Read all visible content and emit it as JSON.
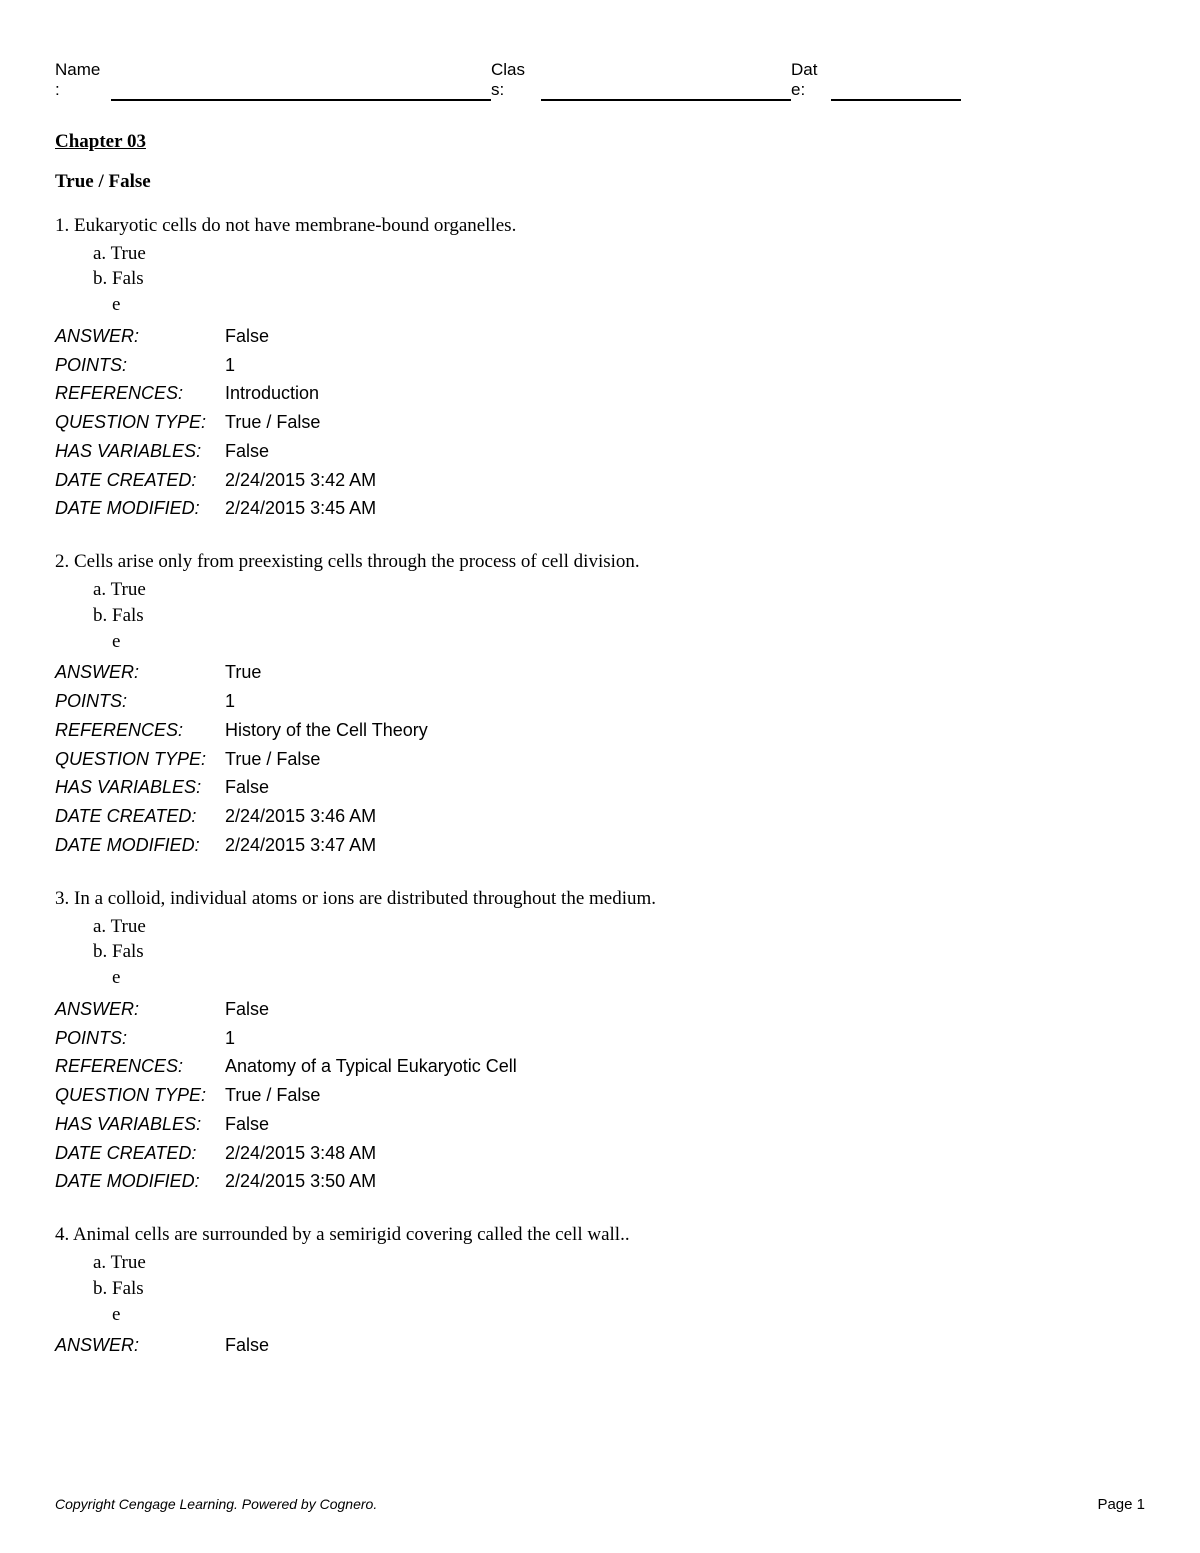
{
  "header": {
    "name_label": "Name\n:",
    "class_label": "Clas\ns:",
    "date_label": "Dat\ne:"
  },
  "chapter_title": "Chapter 03",
  "section_title": "True / False",
  "meta_labels": {
    "answer": "ANSWER:",
    "points": "POINTS:",
    "references": "REFERENCES:",
    "question_type": "QUESTION TYPE:",
    "has_variables": "HAS VARIABLES:",
    "date_created": "DATE CREATED:",
    "date_modified": "DATE MODIFIED:"
  },
  "option_labels": {
    "a": "a. True",
    "b_pre": "b. ",
    "b_word": "Fals\ne"
  },
  "questions": [
    {
      "text": "1. Eukaryotic cells do not have membrane-bound organelles.",
      "answer": "False",
      "points": "1",
      "references": "Introduction",
      "question_type": "True / False",
      "has_variables": "False",
      "date_created": "2/24/2015 3:42 AM",
      "date_modified": "2/24/2015 3:45 AM",
      "show_full_meta": true
    },
    {
      "text": "2. Cells arise only from preexisting cells through the process of cell division.",
      "answer": "True",
      "points": "1",
      "references": "History of the Cell Theory",
      "question_type": "True / False",
      "has_variables": "False",
      "date_created": "2/24/2015 3:46 AM",
      "date_modified": "2/24/2015 3:47 AM",
      "show_full_meta": true
    },
    {
      "text": "3. In a colloid, individual atoms or ions are distributed throughout the medium.",
      "answer": "False",
      "points": "1",
      "references": "Anatomy of a Typical Eukaryotic Cell",
      "question_type": "True / False",
      "has_variables": "False",
      "date_created": "2/24/2015 3:48 AM",
      "date_modified": "2/24/2015 3:50 AM",
      "show_full_meta": true
    },
    {
      "text": "4. Animal cells are surrounded by a semirigid covering called the cell wall..",
      "answer": "False",
      "show_full_meta": false
    }
  ],
  "footer": {
    "copyright": "Copyright Cengage Learning. Powered by Cognero.",
    "page": "Page 1"
  }
}
